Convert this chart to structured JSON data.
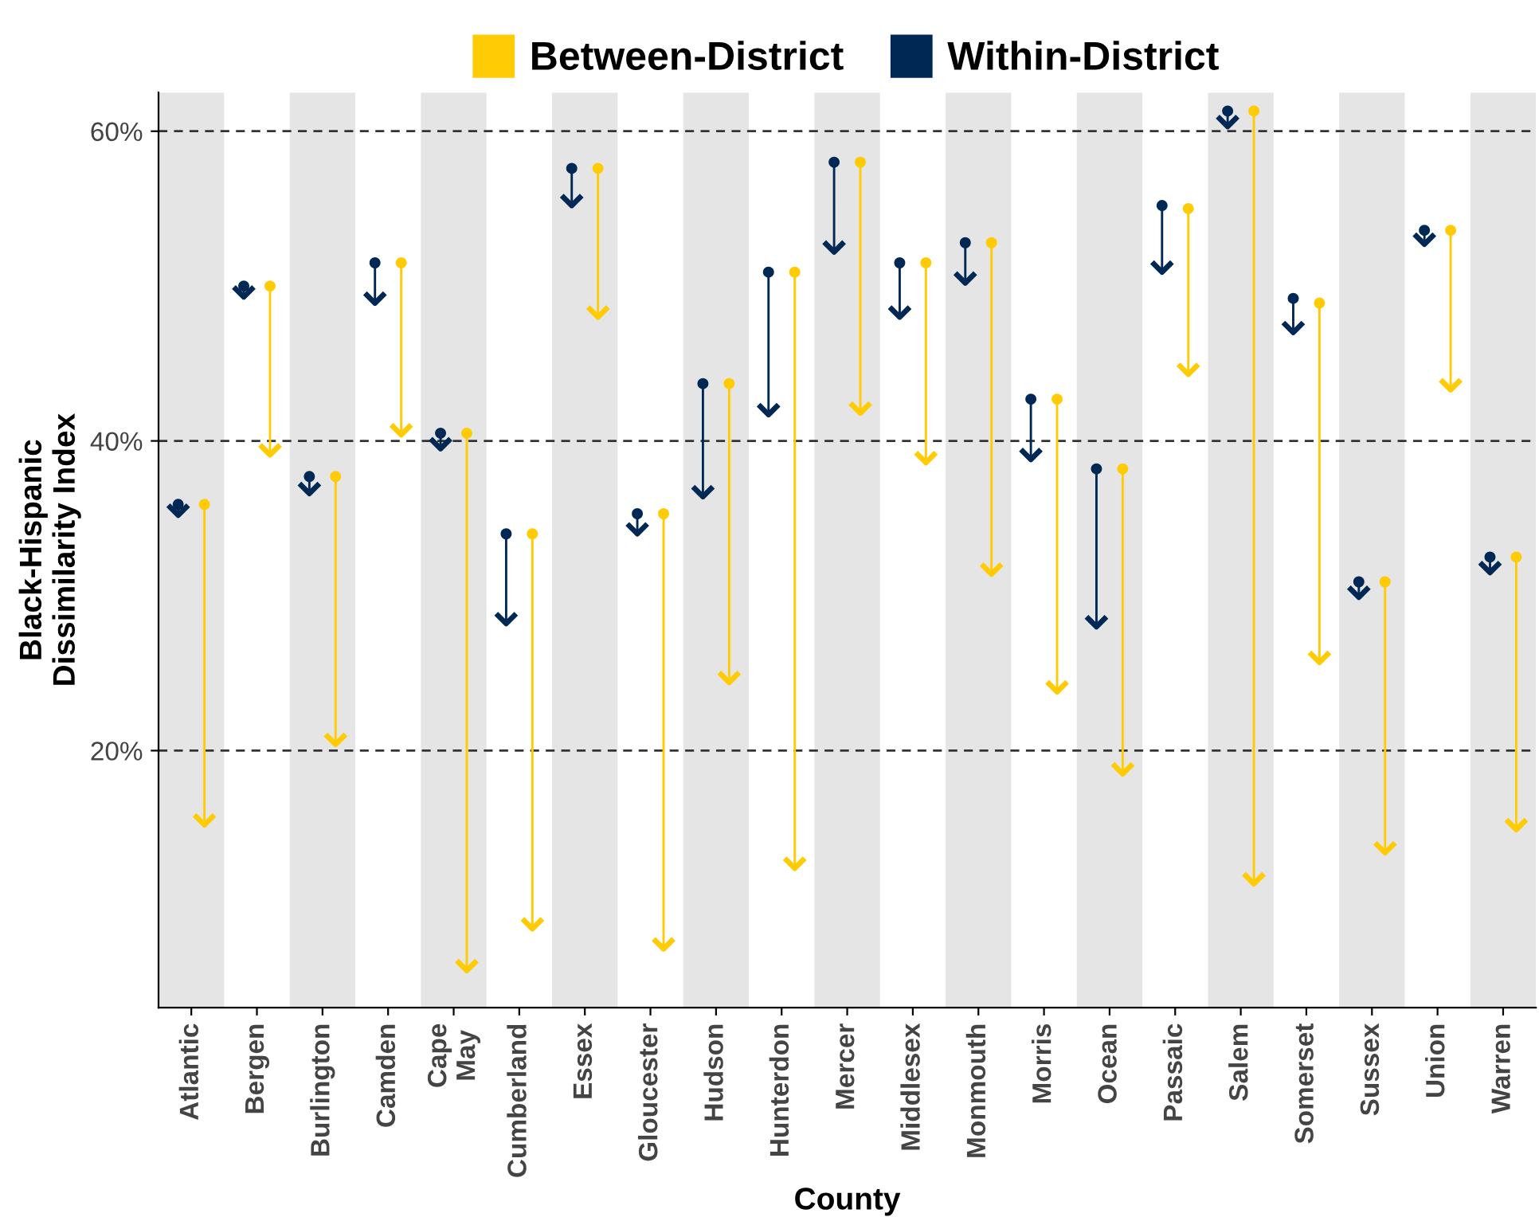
{
  "chart_data": {
    "type": "bar",
    "categories": [
      "Atlantic",
      "Bergen",
      "Burlington",
      "Camden",
      "Cape May",
      "Cumberland",
      "Essex",
      "Gloucester",
      "Hudson",
      "Hunterdon",
      "Mercer",
      "Middlesex",
      "Monmouth",
      "Morris",
      "Ocean",
      "Passaic",
      "Salem",
      "Somerset",
      "Sussex",
      "Union",
      "Warren"
    ],
    "series": [
      {
        "name": "Between-District",
        "color": "#ffcb05",
        "base": [
          35.9,
          50.0,
          37.7,
          51.5,
          40.5,
          34.0,
          57.6,
          35.3,
          43.7,
          50.9,
          58.0,
          51.5,
          52.8,
          42.7,
          38.2,
          55.0,
          61.3,
          48.9,
          30.9,
          53.6,
          32.5
        ],
        "values": [
          -20.7,
          -10.9,
          -17.3,
          -11.1,
          -34.7,
          -25.5,
          -9.6,
          -28.1,
          -19.3,
          -38.5,
          -16.2,
          -12.9,
          -21.4,
          -18.9,
          -19.7,
          -10.7,
          -49.9,
          -23.2,
          -17.5,
          -10.3,
          -17.6
        ]
      },
      {
        "name": "Within-District",
        "color": "#002855",
        "base": [
          35.9,
          50.0,
          37.7,
          51.5,
          40.5,
          34.0,
          57.6,
          35.3,
          43.7,
          50.9,
          58.0,
          51.5,
          52.8,
          42.7,
          38.2,
          55.2,
          61.3,
          49.2,
          30.9,
          53.6,
          32.5
        ],
        "values": [
          -0.7,
          -0.7,
          -1.1,
          -2.6,
          -1.0,
          -5.8,
          -2.4,
          -1.3,
          -7.3,
          -9.2,
          -5.8,
          -3.5,
          -2.6,
          -3.9,
          -10.2,
          -4.3,
          -1.0,
          -2.2,
          -1.0,
          -0.9,
          -1.0
        ]
      }
    ],
    "marker": "circle",
    "xlabel": "County",
    "ylabel": "Black-Hispanic\nDissimilarity Index",
    "ylim": [
      3.4,
      62.5
    ],
    "yticks": [
      {
        "value": 20,
        "label": "20%"
      },
      {
        "value": 40,
        "label": "40%"
      },
      {
        "value": 60,
        "label": "60%"
      }
    ],
    "grid": "y",
    "legend": "top",
    "bands": [
      {
        "axis": "x",
        "from": "Atlantic",
        "to": "Atlantic",
        "color": "#e5e5e5"
      },
      {
        "axis": "x",
        "from": "Burlington",
        "to": "Burlington",
        "color": "#e5e5e5"
      },
      {
        "axis": "x",
        "from": "Cape May",
        "to": "Cape May",
        "color": "#e5e5e5"
      },
      {
        "axis": "x",
        "from": "Essex",
        "to": "Essex",
        "color": "#e5e5e5"
      },
      {
        "axis": "x",
        "from": "Hudson",
        "to": "Hudson",
        "color": "#e5e5e5"
      },
      {
        "axis": "x",
        "from": "Mercer",
        "to": "Mercer",
        "color": "#e5e5e5"
      },
      {
        "axis": "x",
        "from": "Monmouth",
        "to": "Monmouth",
        "color": "#e5e5e5"
      },
      {
        "axis": "x",
        "from": "Ocean",
        "to": "Ocean",
        "color": "#e5e5e5"
      },
      {
        "axis": "x",
        "from": "Salem",
        "to": "Salem",
        "color": "#e5e5e5"
      },
      {
        "axis": "x",
        "from": "Sussex",
        "to": "Sussex",
        "color": "#e5e5e5"
      },
      {
        "axis": "x",
        "from": "Warren",
        "to": "Warren",
        "color": "#e5e5e5"
      }
    ]
  }
}
